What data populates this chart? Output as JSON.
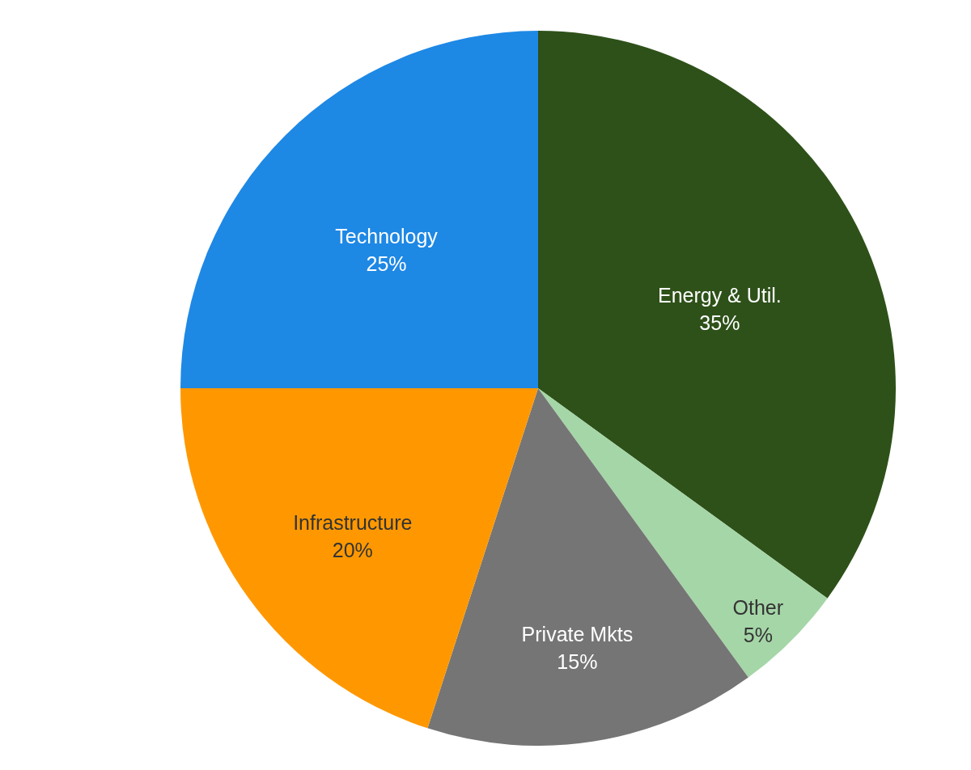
{
  "chart_data": {
    "type": "pie",
    "categories": [
      "Energy & Util.",
      "Other",
      "Private Mkts",
      "Infrastructure",
      "Technology"
    ],
    "values": [
      35,
      5,
      15,
      20,
      25
    ],
    "colors": [
      "#2e5119",
      "#a5d6a7",
      "#757575",
      "#ff9800",
      "#1e88e5"
    ],
    "value_labels": [
      "35%",
      "5%",
      "15%",
      "20%",
      "25%"
    ]
  }
}
